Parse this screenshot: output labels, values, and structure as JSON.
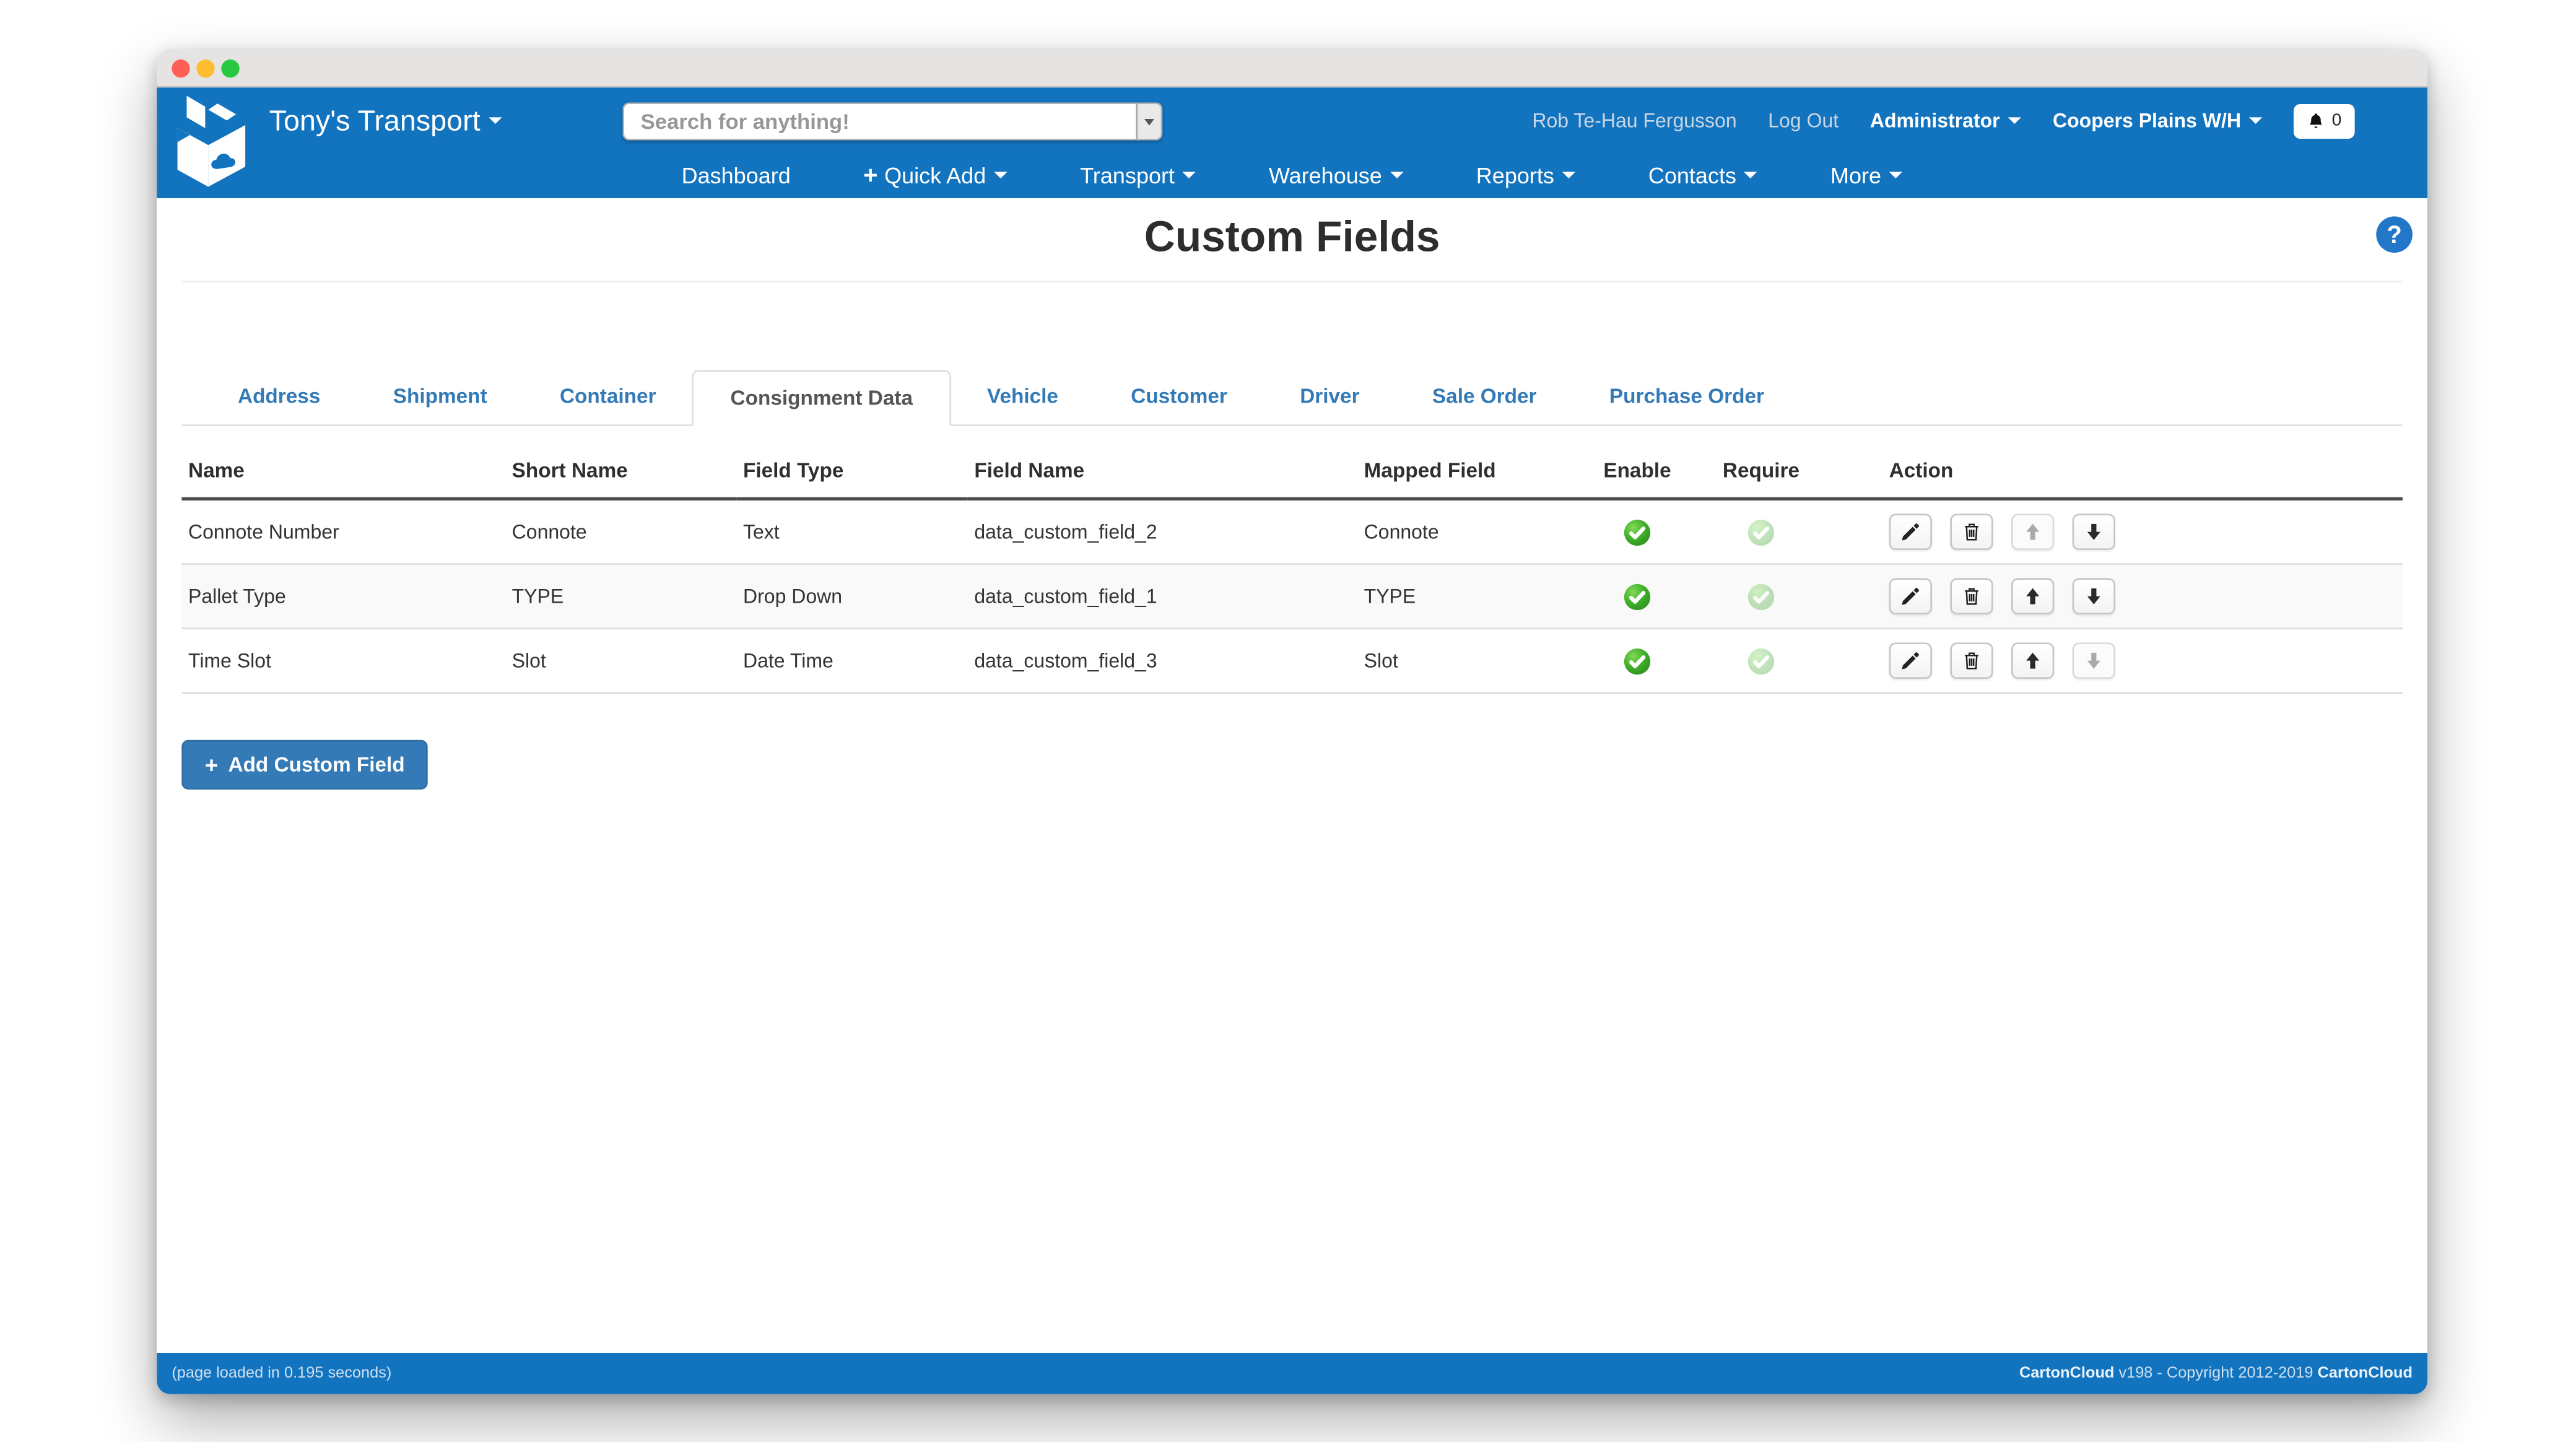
{
  "window": {
    "controls": [
      {
        "name": "close",
        "color": "#ff5f57"
      },
      {
        "name": "minimize",
        "color": "#febc2e"
      },
      {
        "name": "zoom",
        "color": "#28c840"
      }
    ]
  },
  "header": {
    "brand": "Tony's Transport",
    "search": {
      "placeholder": "Search for anything!"
    },
    "user_name": "Rob Te-Hau Fergusson",
    "logout": "Log Out",
    "role": "Administrator",
    "warehouse": "Coopers Plains W/H",
    "notifications": {
      "icon": "bell-icon",
      "count": "0"
    },
    "nav": [
      {
        "label": "Dashboard",
        "caret": false,
        "plus": false
      },
      {
        "label": "Quick Add",
        "caret": true,
        "plus": true
      },
      {
        "label": "Transport",
        "caret": true,
        "plus": false
      },
      {
        "label": "Warehouse",
        "caret": true,
        "plus": false
      },
      {
        "label": "Reports",
        "caret": true,
        "plus": false
      },
      {
        "label": "Contacts",
        "caret": true,
        "plus": false
      },
      {
        "label": "More",
        "caret": true,
        "plus": false
      }
    ]
  },
  "page": {
    "title": "Custom Fields",
    "help_icon": "question-mark-icon"
  },
  "tabs": [
    {
      "label": "Address",
      "active": false
    },
    {
      "label": "Shipment",
      "active": false
    },
    {
      "label": "Container",
      "active": false
    },
    {
      "label": "Consignment Data",
      "active": true
    },
    {
      "label": "Vehicle",
      "active": false
    },
    {
      "label": "Customer",
      "active": false
    },
    {
      "label": "Driver",
      "active": false
    },
    {
      "label": "Sale Order",
      "active": false
    },
    {
      "label": "Purchase Order",
      "active": false
    }
  ],
  "table": {
    "columns": [
      "Name",
      "Short Name",
      "Field Type",
      "Field Name",
      "Mapped Field",
      "Enable",
      "Require",
      "Action"
    ],
    "rows": [
      {
        "name": "Connote Number",
        "short_name": "Connote",
        "field_type": "Text",
        "field_name": "data_custom_field_2",
        "mapped_field": "Connote",
        "enable": "on",
        "require": "off",
        "move_up_enabled": false,
        "move_down_enabled": true
      },
      {
        "name": "Pallet Type",
        "short_name": "TYPE",
        "field_type": "Drop Down",
        "field_name": "data_custom_field_1",
        "mapped_field": "TYPE",
        "enable": "on",
        "require": "off",
        "move_up_enabled": true,
        "move_down_enabled": true
      },
      {
        "name": "Time Slot",
        "short_name": "Slot",
        "field_type": "Date Time",
        "field_name": "data_custom_field_3",
        "mapped_field": "Slot",
        "enable": "on",
        "require": "off",
        "move_up_enabled": true,
        "move_down_enabled": false
      }
    ],
    "action_icons": [
      "edit-pencil-icon",
      "delete-trash-icon",
      "move-up-icon",
      "move-down-icon"
    ]
  },
  "add_button": {
    "label": "Add Custom Field",
    "icon": "plus-icon"
  },
  "footer": {
    "load_time": "(page loaded in 0.195 seconds)",
    "brand": "CartonCloud",
    "copyright": " v198 - Copyright 2012-2019 ",
    "brand2": "CartonCloud"
  },
  "colors": {
    "header_blue": "#1273bf",
    "link_blue": "#337ab7",
    "success_green": "#3fae2a"
  }
}
